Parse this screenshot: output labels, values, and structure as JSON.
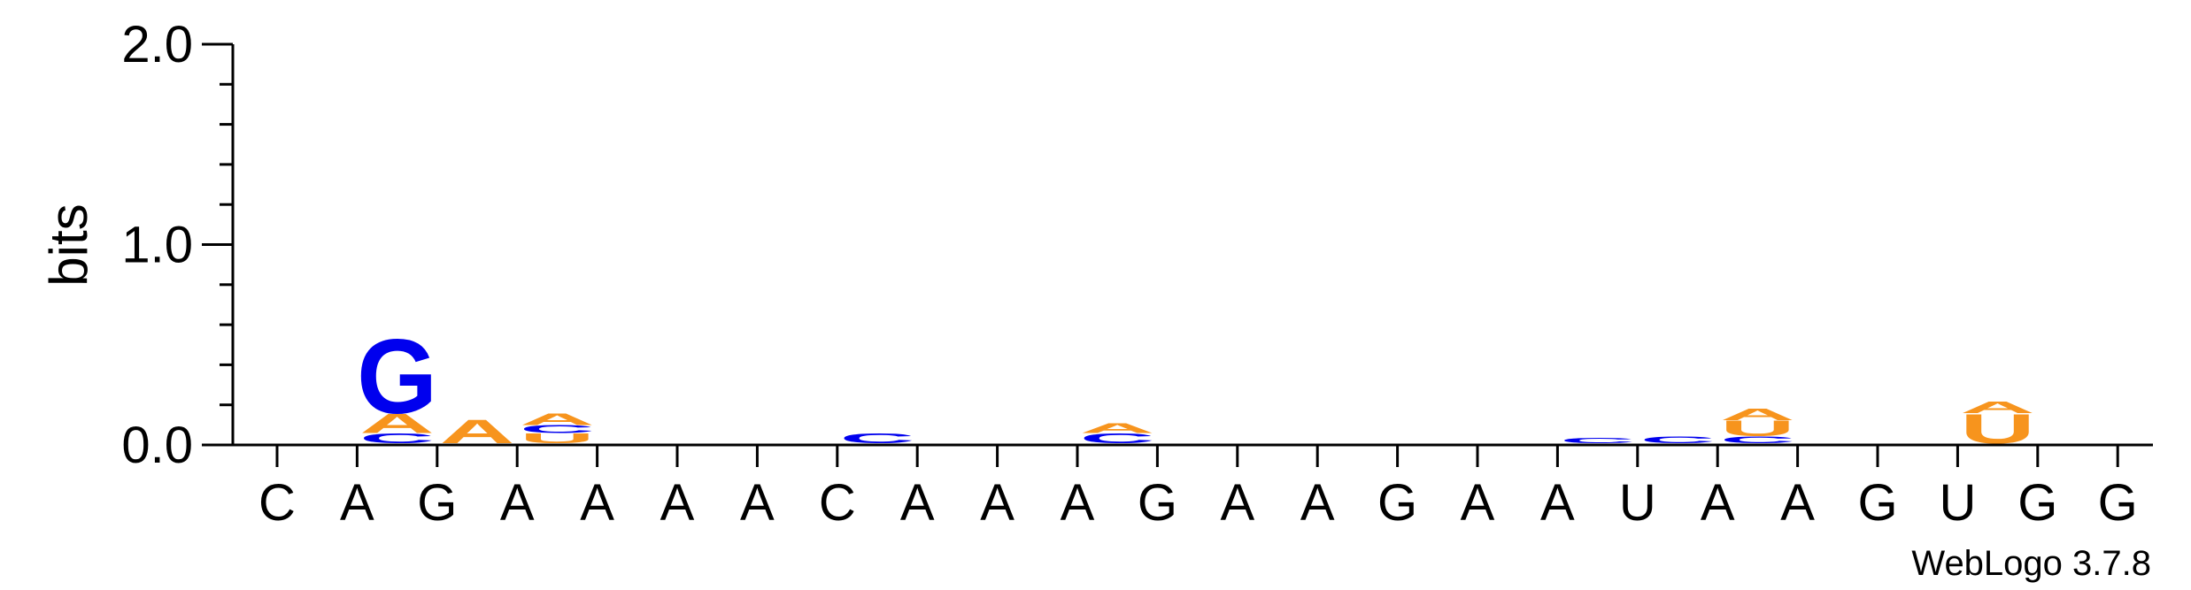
{
  "chart_data": {
    "type": "sequence-logo",
    "ylabel": "bits",
    "ylim": [
      0,
      2.0
    ],
    "y_ticks": [
      "0.0",
      "1.0",
      "2.0"
    ],
    "y_tick_values": [
      0,
      1,
      2
    ],
    "x_labels": [
      "C",
      "A",
      "G",
      "A",
      "A",
      "A",
      "A",
      "C",
      "A",
      "A",
      "A",
      "G",
      "A",
      "A",
      "G",
      "A",
      "A",
      "U",
      "A",
      "A",
      "G",
      "U",
      "G",
      "G"
    ],
    "footer": "WebLogo 3.7.8",
    "colors": {
      "A": "#f7941d",
      "C": "#0000ee",
      "G": "#0000ee",
      "U": "#f7941d"
    },
    "stacks": [
      [],
      [
        {
          "letter": "C",
          "height": 0.05
        },
        {
          "letter": "A",
          "height": 0.1
        },
        {
          "letter": "G",
          "height": 0.38
        }
      ],
      [
        {
          "letter": "A",
          "height": 0.12
        }
      ],
      [
        {
          "letter": "U",
          "height": 0.05
        },
        {
          "letter": "C",
          "height": 0.04
        },
        {
          "letter": "A",
          "height": 0.06
        }
      ],
      [],
      [],
      [],
      [
        {
          "letter": "C",
          "height": 0.05
        }
      ],
      [],
      [],
      [
        {
          "letter": "C",
          "height": 0.05
        },
        {
          "letter": "A",
          "height": 0.05
        }
      ],
      [],
      [],
      [],
      [],
      [],
      [
        {
          "letter": "C",
          "height": 0.025
        }
      ],
      [
        {
          "letter": "C",
          "height": 0.035
        }
      ],
      [
        {
          "letter": "C",
          "height": 0.035
        },
        {
          "letter": "U",
          "height": 0.08
        },
        {
          "letter": "A",
          "height": 0.06
        }
      ],
      [],
      [],
      [
        {
          "letter": "U",
          "height": 0.15
        },
        {
          "letter": "A",
          "height": 0.06
        }
      ],
      [],
      []
    ]
  }
}
